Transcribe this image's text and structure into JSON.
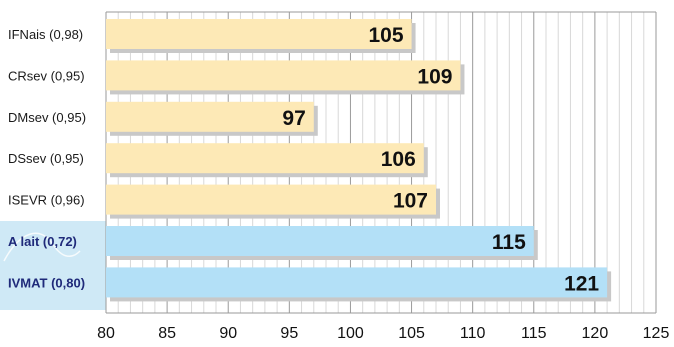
{
  "chart_data": {
    "type": "bar",
    "orientation": "horizontal",
    "categories": [
      "IFNais (0,98)",
      "CRsev (0,95)",
      "DMsev (0,95)",
      "DSsev (0,95)",
      "ISEVR (0,96)",
      "A lait (0,72)",
      "IVMAT (0,80)"
    ],
    "values": [
      105,
      109,
      97,
      106,
      107,
      115,
      121
    ],
    "highlighted": [
      false,
      false,
      false,
      false,
      false,
      true,
      true
    ],
    "xlim": [
      80,
      125
    ],
    "xticks": [
      80,
      85,
      90,
      95,
      100,
      105,
      110,
      115,
      120,
      125
    ],
    "title": "",
    "xlabel": "",
    "ylabel": "",
    "grid": true,
    "colors": {
      "bar": "#fde9b6",
      "bar_highlight": "#b3e0f7",
      "label_band": "#cfe9f6",
      "grid_major": "#9a9a9a",
      "grid_minor": "#d8d8d8",
      "highlight_text": "#1f2a7a",
      "shadow": "#c8c8c8"
    }
  }
}
